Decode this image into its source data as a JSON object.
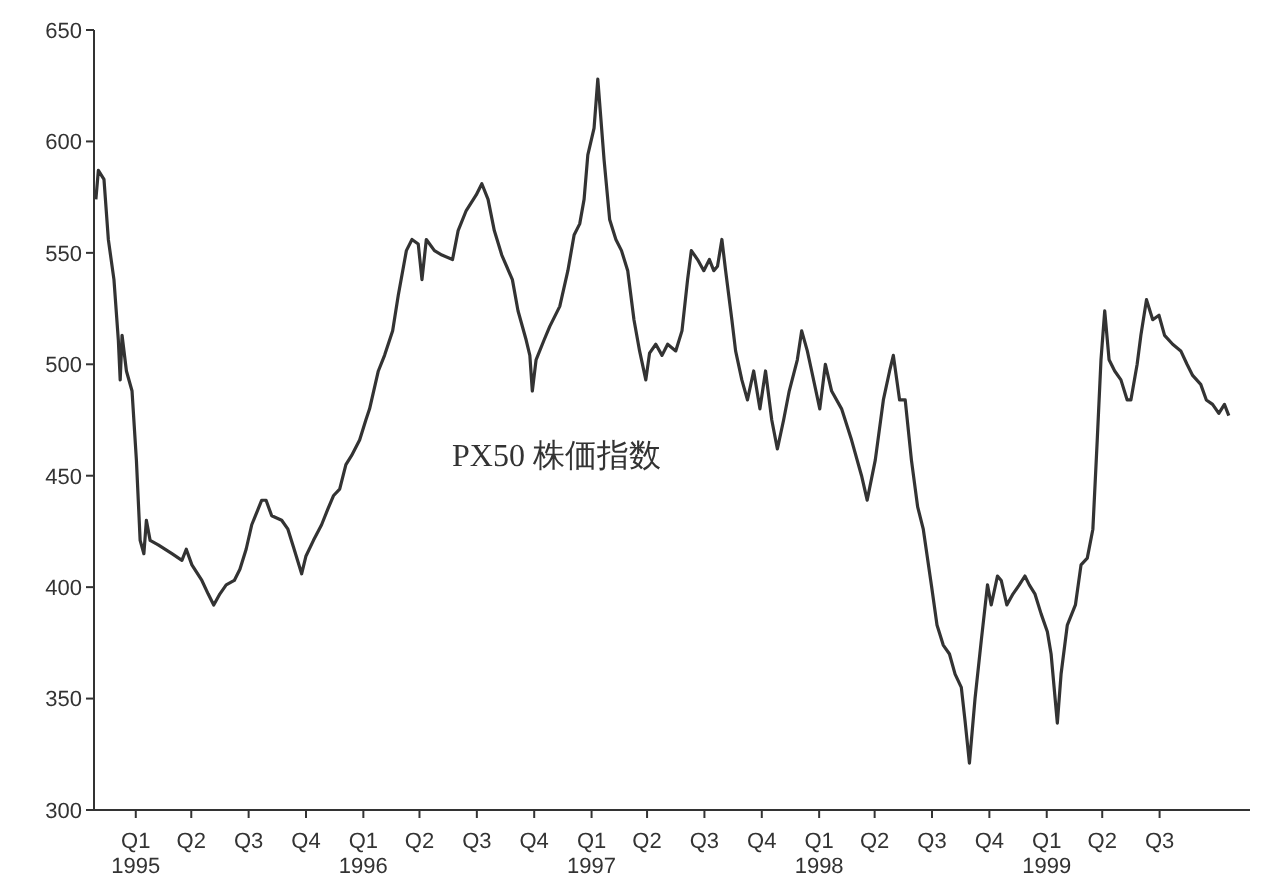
{
  "chart_data": {
    "type": "line",
    "xlim": [
      "1994-12-10",
      "2000-01-07"
    ],
    "ylim": [
      300,
      650
    ],
    "yticks": [
      300,
      350,
      400,
      450,
      500,
      550,
      600,
      650
    ],
    "xticks": [
      {
        "value": "1995-02-15",
        "label": "Q1\n1995"
      },
      {
        "value": "1995-05-15",
        "label": "Q2"
      },
      {
        "value": "1995-08-15",
        "label": "Q3"
      },
      {
        "value": "1995-11-15",
        "label": "Q4"
      },
      {
        "value": "1996-02-15",
        "label": "Q1\n1996"
      },
      {
        "value": "1996-05-15",
        "label": "Q2"
      },
      {
        "value": "1996-08-15",
        "label": "Q3"
      },
      {
        "value": "1996-11-15",
        "label": "Q4"
      },
      {
        "value": "1997-02-15",
        "label": "Q1\n1997"
      },
      {
        "value": "1997-05-15",
        "label": "Q2"
      },
      {
        "value": "1997-08-15",
        "label": "Q3"
      },
      {
        "value": "1997-11-15",
        "label": "Q4"
      },
      {
        "value": "1998-02-15",
        "label": "Q1\n1998"
      },
      {
        "value": "1998-05-15",
        "label": "Q2"
      },
      {
        "value": "1998-08-15",
        "label": "Q3"
      },
      {
        "value": "1998-11-15",
        "label": "Q4"
      },
      {
        "value": "1999-02-15",
        "label": "Q1\n1999"
      },
      {
        "value": "1999-05-15",
        "label": "Q2"
      },
      {
        "value": "1999-08-15",
        "label": "Q3"
      }
    ],
    "grid": false,
    "legend": false,
    "marker": "none",
    "line_style": "solid",
    "series": [
      {
        "name": "PX50 株価指数",
        "color": "#333333",
        "x": [
          "1994-12-13",
          "1994-12-17",
          "1994-12-26",
          "1995-01-02",
          "1995-01-11",
          "1995-01-18",
          "1995-01-21",
          "1995-01-24",
          "1995-01-31",
          "1995-02-09",
          "1995-02-16",
          "1995-02-22",
          "1995-02-28",
          "1995-03-04",
          "1995-03-10",
          "1995-03-23",
          "1995-04-14",
          "1995-04-30",
          "1995-05-07",
          "1995-05-16",
          "1995-06-01",
          "1995-06-11",
          "1995-06-20",
          "1995-06-30",
          "1995-07-10",
          "1995-07-23",
          "1995-08-01",
          "1995-08-11",
          "1995-08-20",
          "1995-09-05",
          "1995-09-12",
          "1995-09-21",
          "1995-10-07",
          "1995-10-17",
          "1995-10-27",
          "1995-11-08",
          "1995-11-15",
          "1995-11-27",
          "1995-12-10",
          "1995-12-20",
          "1995-12-29",
          "1996-01-08",
          "1996-01-18",
          "1996-01-27",
          "1996-02-09",
          "1996-02-19",
          "1996-02-25",
          "1996-03-10",
          "1996-03-20",
          "1996-04-02",
          "1996-04-11",
          "1996-04-24",
          "1996-05-03",
          "1996-05-13",
          "1996-05-19",
          "1996-05-26",
          "1996-06-08",
          "1996-06-20",
          "1996-07-07",
          "1996-07-16",
          "1996-07-29",
          "1996-08-14",
          "1996-08-23",
          "1996-09-02",
          "1996-09-12",
          "1996-09-24",
          "1996-10-11",
          "1996-10-20",
          "1996-11-02",
          "1996-11-08",
          "1996-11-12",
          "1996-11-18",
          "1996-12-01",
          "1996-12-10",
          "1996-12-26",
          "1997-01-08",
          "1997-01-18",
          "1997-01-27",
          "1997-02-03",
          "1997-02-09",
          "1997-02-19",
          "1997-02-25",
          "1997-03-07",
          "1997-03-16",
          "1997-03-26",
          "1997-04-04",
          "1997-04-14",
          "1997-04-24",
          "1997-05-03",
          "1997-05-13",
          "1997-05-19",
          "1997-05-29",
          "1997-06-08",
          "1997-06-17",
          "1997-06-30",
          "1997-07-10",
          "1997-07-19",
          "1997-07-25",
          "1997-08-04",
          "1997-08-14",
          "1997-08-23",
          "1997-08-30",
          "1997-09-05",
          "1997-09-12",
          "1997-09-18",
          "1997-09-28",
          "1997-10-04",
          "1997-10-14",
          "1997-10-23",
          "1997-11-02",
          "1997-11-12",
          "1997-11-21",
          "1997-12-01",
          "1997-12-10",
          "1997-12-20",
          "1997-12-29",
          "1998-01-11",
          "1998-01-18",
          "1998-01-27",
          "1998-02-03",
          "1998-02-16",
          "1998-02-25",
          "1998-03-07",
          "1998-03-23",
          "1998-04-08",
          "1998-04-24",
          "1998-05-03",
          "1998-05-16",
          "1998-05-29",
          "1998-06-08",
          "1998-06-14",
          "1998-06-24",
          "1998-07-03",
          "1998-07-13",
          "1998-07-23",
          "1998-08-01",
          "1998-08-14",
          "1998-08-23",
          "1998-09-02",
          "1998-09-12",
          "1998-09-21",
          "1998-10-01",
          "1998-10-07",
          "1998-10-14",
          "1998-10-23",
          "1998-11-02",
          "1998-11-12",
          "1998-11-18",
          "1998-11-28",
          "1998-12-04",
          "1998-12-13",
          "1998-12-23",
          "1999-01-02",
          "1999-01-11",
          "1999-01-18",
          "1999-01-27",
          "1999-02-06",
          "1999-02-16",
          "1999-02-22",
          "1999-03-04",
          "1999-03-10",
          "1999-03-20",
          "1999-04-02",
          "1999-04-11",
          "1999-04-21",
          "1999-04-30",
          "1999-05-07",
          "1999-05-13",
          "1999-05-19",
          "1999-05-26",
          "1999-06-04",
          "1999-06-14",
          "1999-06-24",
          "1999-06-30",
          "1999-07-10",
          "1999-07-16",
          "1999-07-25",
          "1999-08-04",
          "1999-08-14",
          "1999-08-23",
          "1999-09-05",
          "1999-09-18",
          "1999-09-28",
          "1999-10-07",
          "1999-10-20",
          "1999-10-29",
          "1999-11-08",
          "1999-11-18",
          "1999-11-27",
          "1999-12-04"
        ],
        "values": [
          574,
          587,
          583,
          556,
          538,
          511,
          493,
          513,
          497,
          488,
          457,
          421,
          415,
          430,
          421,
          419,
          415,
          412,
          417,
          410,
          403,
          397,
          392,
          397,
          401,
          403,
          408,
          417,
          428,
          439,
          439,
          432,
          430,
          426,
          417,
          406,
          414,
          421,
          428,
          435,
          441,
          444,
          455,
          459,
          466,
          475,
          480,
          497,
          504,
          515,
          531,
          551,
          556,
          554,
          538,
          556,
          551,
          549,
          547,
          560,
          569,
          576,
          581,
          574,
          560,
          549,
          538,
          524,
          511,
          504,
          488,
          502,
          511,
          517,
          526,
          542,
          558,
          563,
          574,
          594,
          606,
          628,
          592,
          565,
          556,
          551,
          542,
          520,
          506,
          493,
          505,
          509,
          504,
          509,
          506,
          515,
          538,
          551,
          547,
          542,
          547,
          542,
          544,
          556,
          542,
          520,
          506,
          493,
          484,
          497,
          480,
          497,
          475,
          462,
          475,
          488,
          502,
          515,
          506,
          497,
          480,
          500,
          488,
          480,
          466,
          450,
          439,
          457,
          484,
          497,
          504,
          484,
          484,
          457,
          436,
          426,
          401,
          383,
          374,
          370,
          361,
          355,
          340,
          321,
          350,
          376,
          401,
          392,
          405,
          403,
          392,
          397,
          401,
          405,
          401,
          397,
          388,
          380,
          370,
          339,
          361,
          383,
          392,
          410,
          413,
          426,
          466,
          502,
          524,
          502,
          497,
          493,
          484,
          484,
          500,
          513,
          529,
          520,
          522,
          513,
          509,
          506,
          500,
          495,
          491,
          484,
          482,
          478,
          482,
          477
        ]
      }
    ]
  }
}
